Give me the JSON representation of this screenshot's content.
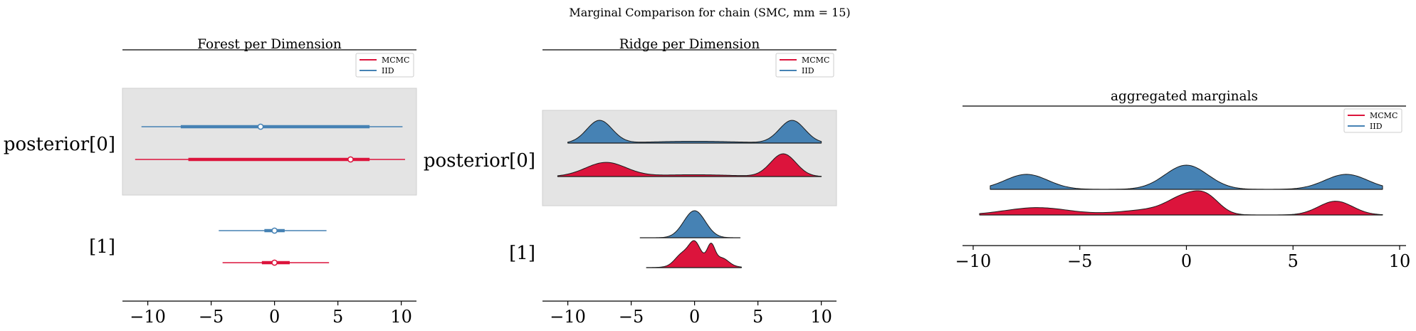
{
  "suptitle": "Marginal Comparison for chain (SMC, mm = 15)",
  "colors": {
    "mcmc": "#dc143c",
    "iid": "#4682b4",
    "band": "#e4e4e4"
  },
  "chart_data": [
    {
      "type": "forest",
      "title": "Forest per Dimension",
      "xlim": [
        -12,
        11.2
      ],
      "xticks": [
        -10,
        -5,
        0,
        5,
        10
      ],
      "xtick_labels": [
        "−10",
        "−5",
        "0",
        "5",
        "10"
      ],
      "rows": [
        {
          "label": "posterior[0]",
          "shaded": true,
          "series": [
            {
              "name": "IID",
              "hdi_full": [
                -10.5,
                10.1
              ],
              "hdi_50": [
                -7.4,
                7.5
              ],
              "point": -1.1
            },
            {
              "name": "MCMC",
              "hdi_full": [
                -11.0,
                10.3
              ],
              "hdi_50": [
                -6.8,
                7.5
              ],
              "point": 6.0
            }
          ]
        },
        {
          "label": "[1]",
          "shaded": false,
          "series": [
            {
              "name": "IID",
              "hdi_full": [
                -4.4,
                4.1
              ],
              "hdi_50": [
                -0.8,
                0.8
              ],
              "point": 0.0
            },
            {
              "name": "MCMC",
              "hdi_full": [
                -4.1,
                4.3
              ],
              "hdi_50": [
                -1.0,
                1.2
              ],
              "point": 0.0
            }
          ]
        }
      ],
      "legend": {
        "entries": [
          "MCMC",
          "IID"
        ],
        "placement": "top-right"
      }
    },
    {
      "type": "ridgeplot",
      "title": "Ridge per Dimension",
      "xlim": [
        -12,
        11.2
      ],
      "xticks": [
        -10,
        -5,
        0,
        5,
        10
      ],
      "xtick_labels": [
        "−10",
        "−5",
        "0",
        "5",
        "10"
      ],
      "rows": [
        {
          "label": "posterior[0]",
          "shaded": true,
          "series": [
            {
              "name": "IID",
              "x_range": [
                -10,
                10
              ],
              "peaks": [
                {
                  "mu": -7.5,
                  "sigma": 1.0,
                  "h": 1.0
                },
                {
                  "mu": 7.7,
                  "sigma": 1.0,
                  "h": 1.0
                },
                {
                  "mu": 0.0,
                  "sigma": 3.5,
                  "h": 0.08
                }
              ]
            },
            {
              "name": "MCMC",
              "x_range": [
                -10.8,
                10
              ],
              "peaks": [
                {
                  "mu": -7.0,
                  "sigma": 1.6,
                  "h": 0.62
                },
                {
                  "mu": 7.0,
                  "sigma": 1.0,
                  "h": 1.0
                },
                {
                  "mu": 0.0,
                  "sigma": 3.0,
                  "h": 0.08
                }
              ]
            }
          ]
        },
        {
          "label": "[1]",
          "shaded": false,
          "series": [
            {
              "name": "IID",
              "x_range": [
                -4.3,
                3.6
              ],
              "peaks": [
                {
                  "mu": 0.0,
                  "sigma": 0.85,
                  "h": 1.0
                }
              ]
            },
            {
              "name": "MCMC",
              "x_range": [
                -3.8,
                3.7
              ],
              "peaks": [
                {
                  "mu": 0.0,
                  "sigma": 0.45,
                  "h": 0.55
                },
                {
                  "mu": 1.3,
                  "sigma": 0.3,
                  "h": 0.5
                },
                {
                  "mu": -1.0,
                  "sigma": 0.55,
                  "h": 0.3
                },
                {
                  "mu": 0.6,
                  "sigma": 1.4,
                  "h": 0.2
                },
                {
                  "mu": 2.2,
                  "sigma": 0.5,
                  "h": 0.18
                }
              ]
            }
          ]
        }
      ],
      "legend": {
        "entries": [
          "MCMC",
          "IID"
        ],
        "placement": "top-right"
      }
    },
    {
      "type": "ridgeplot",
      "title": "aggregated marginals",
      "xlim": [
        -10.5,
        10.3
      ],
      "xticks": [
        -10,
        -5,
        0,
        5,
        10
      ],
      "xtick_labels": [
        "−10",
        "−5",
        "0",
        "5",
        "10"
      ],
      "rows": [
        {
          "label": "",
          "shaded": false,
          "series": [
            {
              "name": "IID",
              "x_range": [
                -9.2,
                9.2
              ],
              "peaks": [
                {
                  "mu": -7.5,
                  "sigma": 1.0,
                  "h": 0.62
                },
                {
                  "mu": 0.0,
                  "sigma": 1.0,
                  "h": 1.0
                },
                {
                  "mu": 7.5,
                  "sigma": 1.0,
                  "h": 0.62
                }
              ]
            },
            {
              "name": "MCMC",
              "x_range": [
                -9.7,
                9.2
              ],
              "peaks": [
                {
                  "mu": -7.0,
                  "sigma": 1.5,
                  "h": 0.4
                },
                {
                  "mu": 0.0,
                  "sigma": 0.8,
                  "h": 0.85
                },
                {
                  "mu": 1.0,
                  "sigma": 0.6,
                  "h": 0.7
                },
                {
                  "mu": 7.0,
                  "sigma": 0.8,
                  "h": 0.75
                },
                {
                  "mu": -1.5,
                  "sigma": 1.5,
                  "h": 0.3
                }
              ]
            }
          ]
        }
      ],
      "legend": {
        "entries": [
          "MCMC",
          "IID"
        ],
        "placement": "top-right"
      }
    }
  ]
}
